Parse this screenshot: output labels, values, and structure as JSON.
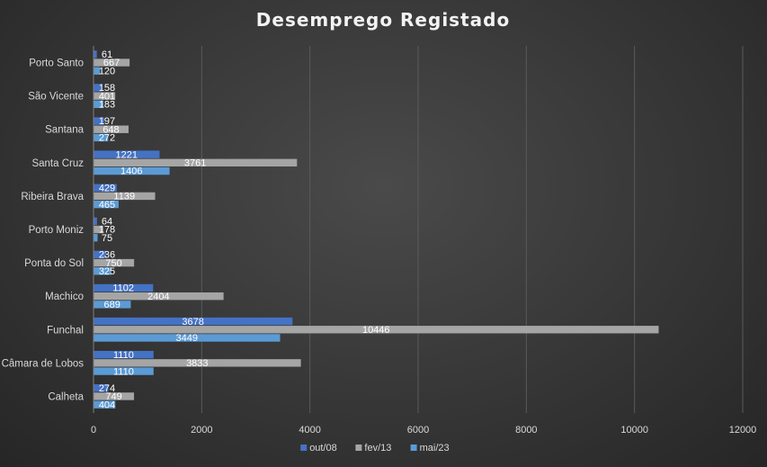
{
  "chart_data": {
    "type": "bar",
    "orientation": "horizontal",
    "title": "Desemprego Registado",
    "categories": [
      "Calheta",
      "Câmara de Lobos",
      "Funchal",
      "Machico",
      "Ponta do Sol",
      "Porto Moniz",
      "Ribeira Brava",
      "Santa Cruz",
      "Santana",
      "São Vicente",
      "Porto Santo"
    ],
    "series": [
      {
        "name": "out/08",
        "color": "#4472C4",
        "values": [
          274,
          1110,
          3678,
          1102,
          236,
          64,
          429,
          1221,
          197,
          158,
          61
        ]
      },
      {
        "name": "fev/13",
        "color": "#A5A5A5",
        "values": [
          749,
          3833,
          10446,
          2404,
          750,
          178,
          1139,
          3761,
          648,
          401,
          667
        ]
      },
      {
        "name": "mai/23",
        "color": "#5B9BD5",
        "values": [
          404,
          1110,
          3449,
          689,
          325,
          75,
          465,
          1406,
          272,
          183,
          120
        ]
      }
    ],
    "xlim": [
      0,
      12000
    ],
    "xticks": [
      0,
      2000,
      4000,
      6000,
      8000,
      10000,
      12000
    ],
    "grid": true,
    "legend_position": "bottom",
    "data_labels": true
  }
}
